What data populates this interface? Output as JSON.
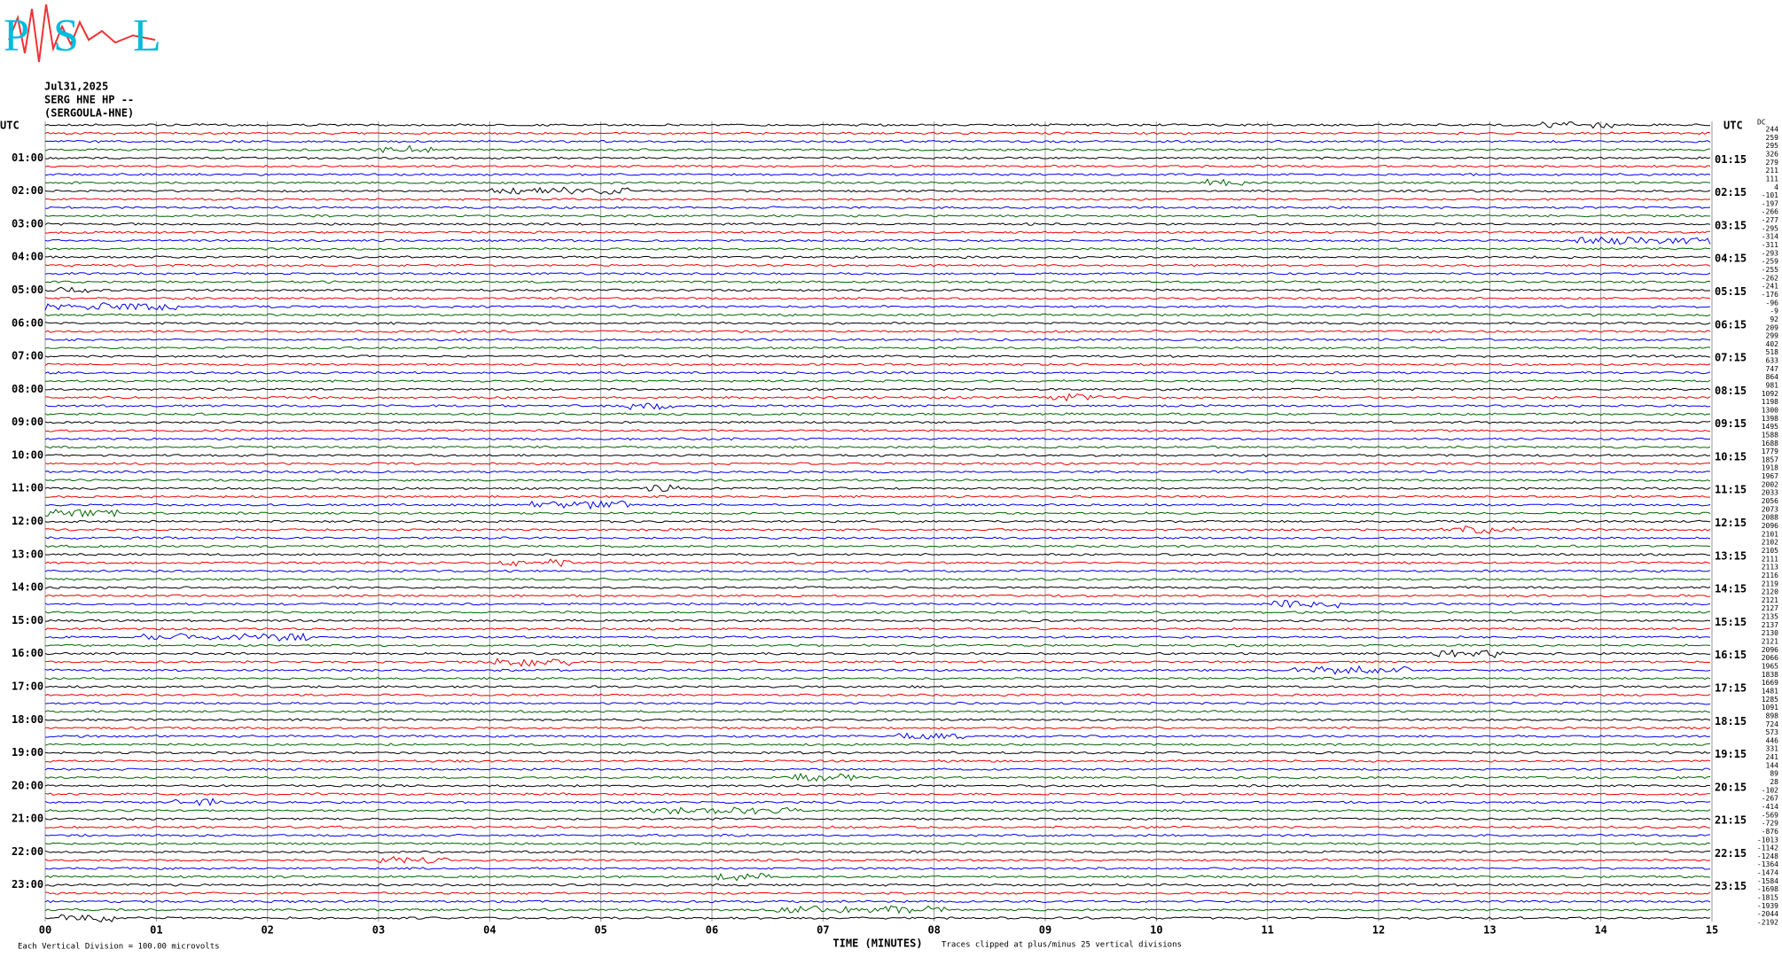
{
  "logo": {
    "letters": [
      "P",
      "S",
      "L"
    ]
  },
  "header": {
    "date": "Jul31,2025",
    "station": "SERG HNE HP --",
    "site": "(SERGOULA-HNE)"
  },
  "left_axis": {
    "title": "UTC",
    "labels": [
      "01:00",
      "02:00",
      "03:00",
      "04:00",
      "05:00",
      "06:00",
      "07:00",
      "08:00",
      "09:00",
      "10:00",
      "11:00",
      "12:00",
      "13:00",
      "14:00",
      "15:00",
      "16:00",
      "17:00",
      "18:00",
      "19:00",
      "20:00",
      "21:00",
      "22:00",
      "23:00"
    ]
  },
  "right_axis": {
    "title": "UTC",
    "labels": [
      "01:15",
      "02:15",
      "03:15",
      "04:15",
      "05:15",
      "06:15",
      "07:15",
      "08:15",
      "09:15",
      "10:15",
      "11:15",
      "12:15",
      "13:15",
      "14:15",
      "15:15",
      "16:15",
      "17:15",
      "18:15",
      "19:15",
      "20:15",
      "21:15",
      "22:15",
      "23:15"
    ]
  },
  "offsets": {
    "title": "DC",
    "values": [
      244,
      259,
      295,
      326,
      279,
      211,
      111,
      4,
      -101,
      -197,
      -266,
      -277,
      -295,
      -314,
      -311,
      -293,
      -259,
      -255,
      -262,
      -241,
      -176,
      -96,
      -9,
      92,
      209,
      299,
      402,
      518,
      633,
      747,
      864,
      981,
      1092,
      1198,
      1300,
      1398,
      1495,
      1588,
      1688,
      1779,
      1857,
      1918,
      1967,
      2002,
      2033,
      2056,
      2073,
      2088,
      2096,
      2101,
      2102,
      2105,
      2111,
      2113,
      2116,
      2119,
      2120,
      2121,
      2127,
      2135,
      2137,
      2130,
      2121,
      2096,
      2066,
      1965,
      1838,
      1669,
      1481,
      1285,
      1091,
      898,
      724,
      573,
      446,
      331,
      241,
      144,
      89,
      28,
      -102,
      -267,
      -414,
      -569,
      -729,
      -876,
      -1013,
      -1142,
      -1248,
      -1364,
      -1474,
      -1584,
      -1698,
      -1815,
      -1939,
      -2044,
      -2192
    ]
  },
  "x_axis": {
    "labels": [
      "00",
      "01",
      "02",
      "03",
      "04",
      "05",
      "06",
      "07",
      "08",
      "09",
      "10",
      "11",
      "12",
      "13",
      "14",
      "15"
    ],
    "title": "TIME (MINUTES)"
  },
  "footer": {
    "scale": "Each Vertical Division =  100.00 microvolts",
    "clip": "Traces clipped at plus/minus 25 vertical divisions"
  }
}
